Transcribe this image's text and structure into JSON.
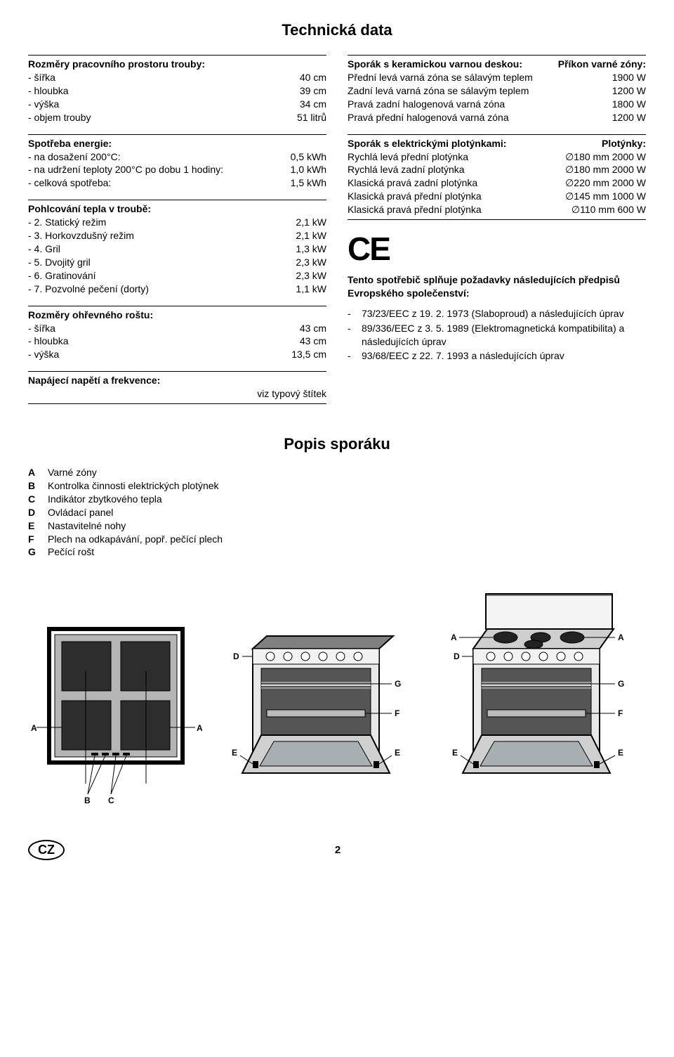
{
  "title_main": "Technická data",
  "title_desc": "Popis sporáku",
  "left": {
    "s1": {
      "header": "Rozměry pracovního prostoru trouby:",
      "rows": [
        {
          "l": "- šířka",
          "v": "40 cm"
        },
        {
          "l": "- hloubka",
          "v": "39 cm"
        },
        {
          "l": "- výška",
          "v": "34 cm"
        },
        {
          "l": "- objem trouby",
          "v": "51 litrů"
        }
      ]
    },
    "s2": {
      "header": "Spotřeba energie:",
      "rows": [
        {
          "l": "- na dosažení 200°C:",
          "v": "0,5 kWh"
        },
        {
          "l": "- na udržení teploty 200°C po dobu 1 hodiny:",
          "v": "1,0 kWh"
        },
        {
          "l": "- celková spotřeba:",
          "v": "1,5 kWh"
        }
      ]
    },
    "s3": {
      "header": "Pohlcování tepla v troubě:",
      "rows": [
        {
          "l": "- 2. Statický režim",
          "v": "2,1 kW"
        },
        {
          "l": "- 3. Horkovzdušný režim",
          "v": "2,1 kW"
        },
        {
          "l": "- 4. Gril",
          "v": "1,3 kW"
        },
        {
          "l": "- 5. Dvojitý gril",
          "v": "2,3 kW"
        },
        {
          "l": "- 6. Gratinování",
          "v": "2,3 kW"
        },
        {
          "l": "- 7. Pozvolné pečení (dorty)",
          "v": "1,1 kW"
        }
      ]
    },
    "s4": {
      "header": "Rozměry ohřevného roštu:",
      "rows": [
        {
          "l": "- šířka",
          "v": "43 cm"
        },
        {
          "l": "- hloubka",
          "v": "43 cm"
        },
        {
          "l": "- výška",
          "v": "13,5 cm"
        }
      ]
    },
    "s5": {
      "header": "Napájecí napětí a frekvence:",
      "value": "viz typový štítek"
    }
  },
  "right": {
    "s1": {
      "header_l": "Sporák s keramickou varnou deskou:",
      "header_r": "Příkon varné zóny:",
      "rows": [
        {
          "l": "Přední levá varná zóna se sálavým teplem",
          "v": "1900 W"
        },
        {
          "l": "Zadní levá varná zóna se sálavým teplem",
          "v": "1200 W"
        },
        {
          "l": "Pravá zadní halogenová varná zóna",
          "v": "1800 W"
        },
        {
          "l": "Pravá přední halogenová varná zóna",
          "v": "1200 W"
        }
      ]
    },
    "s2": {
      "header_l": "Sporák s elektrickými plotýnkami:",
      "header_r": "Plotýnky:",
      "rows": [
        {
          "l": "Rychlá levá přední plotýnka",
          "v": "∅180 mm 2000 W"
        },
        {
          "l": "Rychlá levá zadní plotýnka",
          "v": "∅180 mm 2000 W"
        },
        {
          "l": "Klasická pravá zadní plotýnka",
          "v": "∅220 mm 2000 W"
        },
        {
          "l": "Klasická pravá přední plotýnka",
          "v": "∅145 mm 1000 W"
        },
        {
          "l": "Klasická pravá přední plotýnka",
          "v": "∅110 mm 600 W"
        }
      ]
    },
    "ce_mark": "CE",
    "compliance_intro": "Tento spotřebič splňuje požadavky následujících předpisů Evropského společenství:",
    "directives": [
      "73/23/EEC z 19. 2. 1973 (Slaboproud) a následujících úprav",
      "89/336/EEC z 3. 5. 1989 (Elektromagnetická kompatibilita) a následujících úprav",
      "93/68/EEC z 22. 7. 1993 a následujících úprav"
    ]
  },
  "legend": [
    {
      "k": "A",
      "v": "Varné zóny"
    },
    {
      "k": "B",
      "v": "Kontrolka činnosti elektrických plotýnek"
    },
    {
      "k": "C",
      "v": "Indikátor zbytkového tepla"
    },
    {
      "k": "D",
      "v": "Ovládací panel"
    },
    {
      "k": "E",
      "v": "Nastavitelné nohy"
    },
    {
      "k": "F",
      "v": "Plech na odkapávání, popř. pečící plech"
    },
    {
      "k": "G",
      "v": "Pečící rošt"
    }
  ],
  "labels": {
    "A": "A",
    "B": "B",
    "C": "C",
    "D": "D",
    "E": "E",
    "F": "F",
    "G": "G"
  },
  "footer": {
    "cz": "CZ",
    "page": "2"
  },
  "colors": {
    "stroke": "#000",
    "fill_dark": "#3a3a3a",
    "fill_mid": "#888",
    "fill_white": "#fff"
  }
}
